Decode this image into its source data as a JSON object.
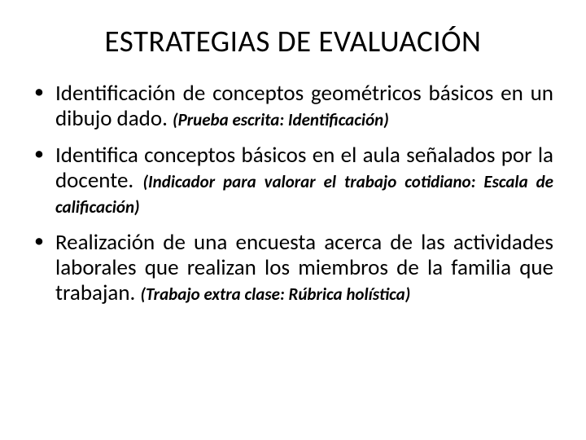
{
  "title": "ESTRATEGIAS DE EVALUACIÓN",
  "items": [
    {
      "main": "Identificación de conceptos geométricos básicos en un dibujo dado. ",
      "note": "(Prueba escrita: Identificación)"
    },
    {
      "main": "Identifica conceptos básicos en el aula señalados por la docente. ",
      "note": "(Indicador para valorar el trabajo cotidiano: Escala de calificación)"
    },
    {
      "main": "Realización de una encuesta acerca de las actividades laborales que realizan los miembros de la familia que trabajan. ",
      "note": "(Trabajo extra clase: Rúbrica holística)"
    }
  ]
}
